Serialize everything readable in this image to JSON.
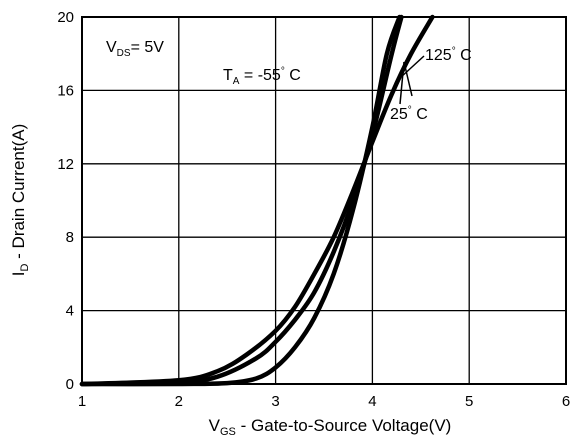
{
  "chart_data": {
    "type": "line",
    "xlabel_parts": {
      "main": "V",
      "sub": "GS",
      "rest": " - Gate-to-Source Voltage(V)"
    },
    "ylabel_parts": {
      "main": "I",
      "sub": "D",
      "rest": " - Drain Current(A)"
    },
    "xlim": [
      1,
      6
    ],
    "ylim": [
      0,
      20
    ],
    "xticks": [
      "1",
      "2",
      "3",
      "4",
      "5",
      "6"
    ],
    "yticks": [
      "0",
      "4",
      "8",
      "12",
      "16",
      "20"
    ],
    "grid": true,
    "annotations": {
      "vds": {
        "main": "V",
        "sub": "DS",
        "rest": "= 5V"
      },
      "ta": {
        "main": "T",
        "sub": "A",
        "rest": " = -55",
        "deg": "°",
        "unit": " C"
      },
      "t125": {
        "text": "125",
        "deg": "°",
        "unit": " C"
      },
      "t25": {
        "text": "25",
        "deg": "°",
        "unit": " C"
      }
    },
    "series": [
      {
        "label_ref": "ta",
        "points": [
          [
            1.0,
            0.0
          ],
          [
            2.0,
            0.0
          ],
          [
            2.5,
            0.05
          ],
          [
            2.8,
            0.3
          ],
          [
            3.0,
            0.9
          ],
          [
            3.2,
            2.0
          ],
          [
            3.4,
            3.6
          ],
          [
            3.6,
            6.0
          ],
          [
            3.8,
            9.5
          ],
          [
            4.0,
            14.0
          ],
          [
            4.15,
            18.0
          ],
          [
            4.28,
            20.0
          ]
        ]
      },
      {
        "label_ref": "t25",
        "points": [
          [
            1.0,
            0.0
          ],
          [
            2.0,
            0.1
          ],
          [
            2.4,
            0.4
          ],
          [
            2.8,
            1.4
          ],
          [
            3.0,
            2.3
          ],
          [
            3.2,
            3.5
          ],
          [
            3.4,
            5.0
          ],
          [
            3.6,
            7.2
          ],
          [
            3.8,
            10.0
          ],
          [
            4.0,
            13.6
          ],
          [
            4.2,
            18.0
          ],
          [
            4.3,
            20.0
          ]
        ]
      },
      {
        "label_ref": "t125",
        "points": [
          [
            1.0,
            0.0
          ],
          [
            2.0,
            0.2
          ],
          [
            2.4,
            0.7
          ],
          [
            2.7,
            1.6
          ],
          [
            3.0,
            2.9
          ],
          [
            3.2,
            4.2
          ],
          [
            3.4,
            6.0
          ],
          [
            3.6,
            8.0
          ],
          [
            3.8,
            10.5
          ],
          [
            4.0,
            13.2
          ],
          [
            4.2,
            15.8
          ],
          [
            4.4,
            18.0
          ],
          [
            4.62,
            20.0
          ]
        ]
      }
    ]
  }
}
